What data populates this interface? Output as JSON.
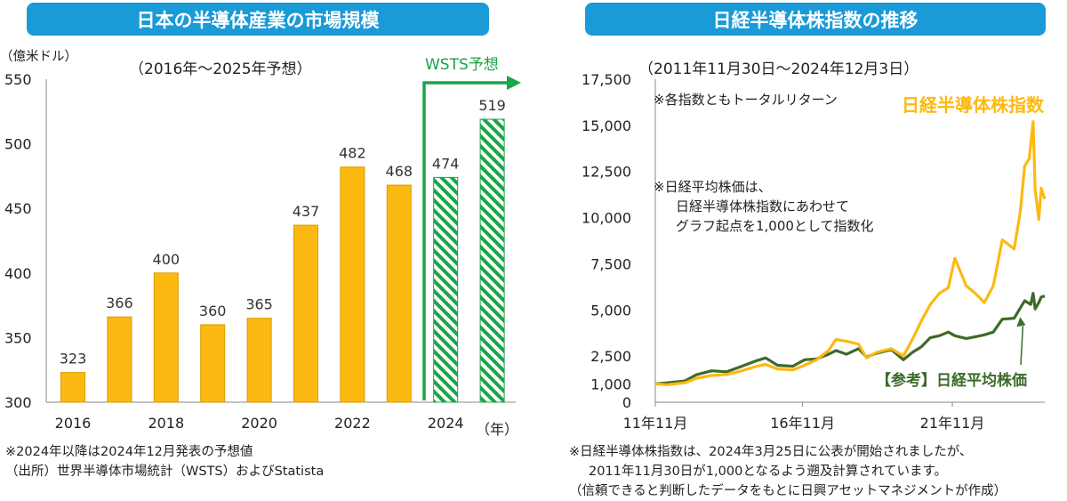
{
  "left": {
    "header": "日本の半導体産業の市場規模",
    "subtitle": "（2016年～2025年予想）",
    "unit": "（億米ドル）",
    "forecast_label": "WSTS予想",
    "year_unit": "（年）",
    "notes": [
      "※2024年以降は2024年12月発表の予想値",
      "（出所）世界半導体市場統計（WSTS）およびStatista"
    ],
    "colors": {
      "bar": "#fcb912",
      "forecast": "#1aa548",
      "header": "#1a9ad6"
    }
  },
  "right": {
    "header": "日経半導体株指数の推移",
    "subtitle": "（2011年11月30日～2024年12月3日）",
    "note_total_return": "※各指数ともトータルリターン",
    "note_base": [
      "※日経平均株価は、",
      "日経半導体株指数にあわせて",
      "グラフ起点を1,000として指数化"
    ],
    "footnotes": [
      "※日経半導体株指数は、2024年3月25日に公表が開始されましたが、",
      "2011年11月30日が1,000となるよう遡及計算されています。",
      "（信頼できると判断したデータをもとに日興アセットマネジメントが作成）"
    ],
    "colors": {
      "semis": "#fcb912",
      "nikkei": "#3d6b2a"
    }
  },
  "chart_data": [
    {
      "type": "bar",
      "categories": [
        "2016",
        "2017",
        "2018",
        "2019",
        "2020",
        "2021",
        "2022",
        "2023",
        "2024",
        "2025"
      ],
      "x_tick_labels": [
        "2016",
        "2018",
        "2020",
        "2022",
        "2024"
      ],
      "values": [
        323,
        366,
        400,
        360,
        365,
        437,
        482,
        468,
        474,
        519
      ],
      "forecast": [
        false,
        false,
        false,
        false,
        false,
        false,
        false,
        false,
        true,
        true
      ],
      "ylim": [
        300,
        550
      ],
      "yticks": [
        300,
        350,
        400,
        450,
        500,
        550
      ]
    },
    {
      "type": "line",
      "x_tick_labels": [
        "11年11月",
        "16年11月",
        "21年11月"
      ],
      "x_ticks": [
        2011.917,
        2016.833,
        2021.833
      ],
      "xlim": [
        2011.917,
        2024.92
      ],
      "ylim": [
        0,
        17500
      ],
      "yticks": [
        0,
        1000,
        2500,
        5000,
        7500,
        10000,
        12500,
        15000,
        17500
      ],
      "ytick_labels": [
        "0",
        "1,000",
        "2,500",
        "5,000",
        "7,500",
        "10,000",
        "12,500",
        "15,000",
        "17,500"
      ],
      "series": [
        {
          "name": "日経半導体株指数",
          "color": "#fcb912",
          "points": [
            [
              2011.92,
              1000
            ],
            [
              2012.3,
              950
            ],
            [
              2012.9,
              1050
            ],
            [
              2013.3,
              1300
            ],
            [
              2013.8,
              1450
            ],
            [
              2014.3,
              1500
            ],
            [
              2014.8,
              1700
            ],
            [
              2015.3,
              1950
            ],
            [
              2015.6,
              2050
            ],
            [
              2016.0,
              1800
            ],
            [
              2016.5,
              1750
            ],
            [
              2016.9,
              2000
            ],
            [
              2017.3,
              2300
            ],
            [
              2017.7,
              2800
            ],
            [
              2017.95,
              3400
            ],
            [
              2018.3,
              3300
            ],
            [
              2018.7,
              3150
            ],
            [
              2018.97,
              2400
            ],
            [
              2019.3,
              2700
            ],
            [
              2019.8,
              2900
            ],
            [
              2020.2,
              2500
            ],
            [
              2020.5,
              3400
            ],
            [
              2020.8,
              4400
            ],
            [
              2021.1,
              5300
            ],
            [
              2021.4,
              5900
            ],
            [
              2021.7,
              6200
            ],
            [
              2021.92,
              7800
            ],
            [
              2022.3,
              6300
            ],
            [
              2022.6,
              5900
            ],
            [
              2022.9,
              5400
            ],
            [
              2023.2,
              6300
            ],
            [
              2023.5,
              8800
            ],
            [
              2023.9,
              8300
            ],
            [
              2024.1,
              10300
            ],
            [
              2024.25,
              12800
            ],
            [
              2024.4,
              13200
            ],
            [
              2024.53,
              15200
            ],
            [
              2024.6,
              11500
            ],
            [
              2024.72,
              9900
            ],
            [
              2024.8,
              11600
            ],
            [
              2024.92,
              11000
            ]
          ]
        },
        {
          "name": "日経平均株価",
          "color": "#3d6b2a",
          "points": [
            [
              2011.92,
              1000
            ],
            [
              2012.3,
              1050
            ],
            [
              2012.9,
              1150
            ],
            [
              2013.3,
              1500
            ],
            [
              2013.8,
              1700
            ],
            [
              2014.3,
              1650
            ],
            [
              2014.8,
              1950
            ],
            [
              2015.3,
              2250
            ],
            [
              2015.6,
              2400
            ],
            [
              2016.0,
              2000
            ],
            [
              2016.5,
              1950
            ],
            [
              2016.9,
              2300
            ],
            [
              2017.3,
              2350
            ],
            [
              2017.7,
              2600
            ],
            [
              2017.95,
              2800
            ],
            [
              2018.3,
              2600
            ],
            [
              2018.7,
              2900
            ],
            [
              2018.97,
              2450
            ],
            [
              2019.3,
              2650
            ],
            [
              2019.8,
              2850
            ],
            [
              2020.2,
              2300
            ],
            [
              2020.5,
              2700
            ],
            [
              2020.8,
              3000
            ],
            [
              2021.1,
              3500
            ],
            [
              2021.4,
              3600
            ],
            [
              2021.7,
              3800
            ],
            [
              2021.92,
              3600
            ],
            [
              2022.3,
              3450
            ],
            [
              2022.6,
              3550
            ],
            [
              2022.9,
              3650
            ],
            [
              2023.2,
              3800
            ],
            [
              2023.5,
              4500
            ],
            [
              2023.9,
              4550
            ],
            [
              2024.1,
              5100
            ],
            [
              2024.25,
              5500
            ],
            [
              2024.45,
              5300
            ],
            [
              2024.53,
              5900
            ],
            [
              2024.6,
              5050
            ],
            [
              2024.72,
              5400
            ],
            [
              2024.8,
              5700
            ],
            [
              2024.92,
              5750
            ]
          ]
        }
      ]
    }
  ]
}
